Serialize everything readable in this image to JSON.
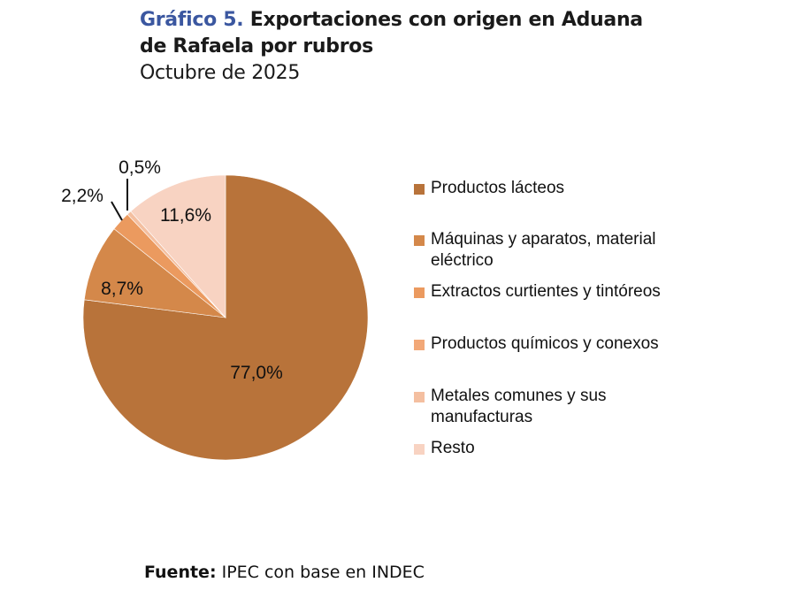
{
  "header": {
    "title_prefix": "Gráfico 5.",
    "title_line1": " Exportaciones con origen en Aduana",
    "title_line2": "de Rafaela por rubros",
    "subtitle": "Octubre de 2025"
  },
  "footer": {
    "source_label": "Fuente:",
    "source_text": " IPEC con base en INDEC"
  },
  "colors": {
    "title_accent": "#3b57a0"
  },
  "chart_data": {
    "type": "pie",
    "title": "Gráfico 5. Exportaciones con origen en Aduana de Rafaela por rubros",
    "subtitle": "Octubre de 2025",
    "unit": "%",
    "start_angle": "12 o'clock, clockwise",
    "legend_position": "right",
    "categories": [
      "Productos lácteos",
      "Máquinas y aparatos, material eléctrico",
      "Extractos curtientes y tintóreos",
      "Productos químicos y conexos",
      "Metales comunes y sus manufacturas",
      "Resto"
    ],
    "values": [
      77.0,
      8.7,
      2.2,
      0.0,
      0.5,
      11.6
    ],
    "data_labels": [
      "77,0%",
      "8,7%",
      "2,2%",
      "",
      "0,5%",
      "11,6%"
    ],
    "colors": [
      "#b8733a",
      "#d4884a",
      "#eb9a5f",
      "#f2a878",
      "#f4bfa0",
      "#f8d3c2"
    ],
    "source": "Fuente: IPEC con base en INDEC"
  },
  "legend": {
    "items": [
      {
        "label": "Productos lácteos"
      },
      {
        "label": "Máquinas y aparatos, material eléctrico"
      },
      {
        "label": "Extractos curtientes y tintóreos"
      },
      {
        "label": "Productos químicos y conexos"
      },
      {
        "label": "Metales comunes y sus manufacturas"
      },
      {
        "label": "Resto"
      }
    ]
  },
  "labels": {
    "lacteos": "77,0%",
    "maquinas": "8,7%",
    "extractos": "2,2%",
    "metales": "0,5%",
    "resto": "11,6%"
  }
}
